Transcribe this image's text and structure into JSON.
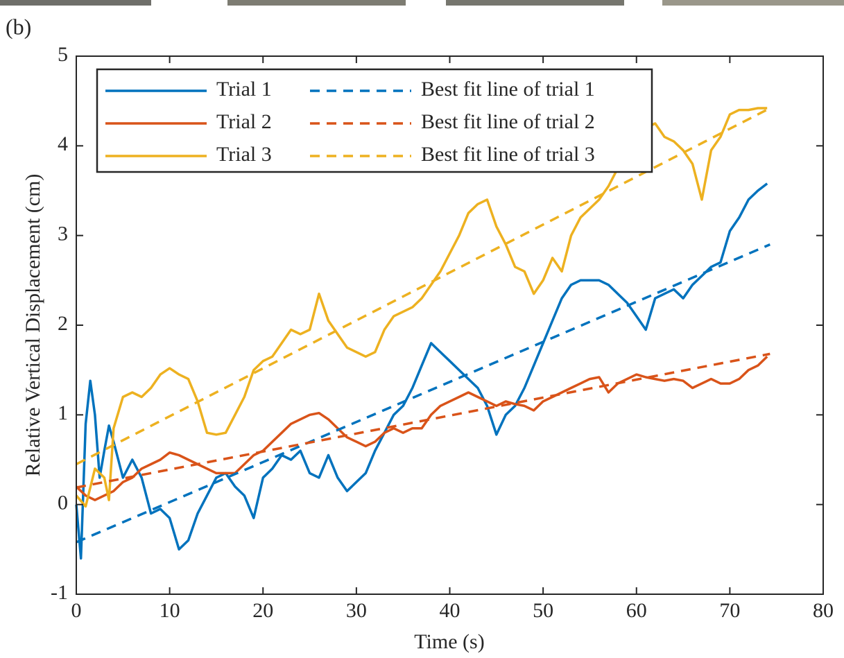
{
  "chart_data": {
    "type": "line",
    "panel_label": "(b)",
    "xlabel": "Time (s)",
    "ylabel": "Relative Vertical Displacement (cm)",
    "xlim": [
      0,
      80
    ],
    "xticks": [
      0,
      10,
      20,
      30,
      40,
      50,
      60,
      70,
      80
    ],
    "ylim": [
      -1,
      5
    ],
    "yticks": [
      -1,
      0,
      1,
      2,
      3,
      4,
      5
    ],
    "grid": false,
    "legend": "upper left",
    "series": [
      {
        "name": "Trial 1",
        "color": "#0072BD",
        "dashed": false,
        "x": [
          0,
          0.5,
          1,
          1.5,
          2,
          2.5,
          3,
          3.5,
          4,
          5,
          6,
          7,
          8,
          9,
          10,
          11,
          12,
          13,
          14,
          15,
          16,
          17,
          18,
          19,
          20,
          21,
          22,
          23,
          24,
          25,
          26,
          27,
          28,
          29,
          30,
          31,
          32,
          33,
          34,
          35,
          36,
          37,
          38,
          39,
          40,
          41,
          42,
          43,
          44,
          45,
          46,
          47,
          48,
          49,
          50,
          51,
          52,
          53,
          54,
          55,
          56,
          57,
          58,
          59,
          60,
          61,
          62,
          63,
          64,
          65,
          66,
          67,
          68,
          69,
          70,
          71,
          72,
          73,
          74
        ],
        "values": [
          0.0,
          -0.6,
          0.9,
          1.38,
          1.0,
          0.3,
          0.6,
          0.88,
          0.7,
          0.3,
          0.5,
          0.3,
          -0.1,
          -0.05,
          -0.15,
          -0.5,
          -0.4,
          -0.1,
          0.1,
          0.3,
          0.35,
          0.2,
          0.1,
          -0.15,
          0.3,
          0.4,
          0.55,
          0.5,
          0.6,
          0.35,
          0.3,
          0.55,
          0.3,
          0.15,
          0.25,
          0.35,
          0.6,
          0.8,
          1.0,
          1.1,
          1.3,
          1.55,
          1.8,
          1.7,
          1.6,
          1.5,
          1.4,
          1.3,
          1.1,
          0.78,
          1.0,
          1.1,
          1.3,
          1.55,
          1.8,
          2.05,
          2.3,
          2.45,
          2.5,
          2.5,
          2.5,
          2.45,
          2.35,
          2.25,
          2.1,
          1.95,
          2.3,
          2.35,
          2.4,
          2.3,
          2.45,
          2.55,
          2.65,
          2.7,
          3.05,
          3.2,
          3.4,
          3.5,
          3.58
        ]
      },
      {
        "name": "Trial 2",
        "color": "#D95319",
        "dashed": false,
        "x": [
          0,
          1,
          2,
          3,
          4,
          5,
          6,
          7,
          8,
          9,
          10,
          11,
          12,
          13,
          14,
          15,
          16,
          17,
          18,
          19,
          20,
          21,
          22,
          23,
          24,
          25,
          26,
          27,
          28,
          29,
          30,
          31,
          32,
          33,
          34,
          35,
          36,
          37,
          38,
          39,
          40,
          41,
          42,
          43,
          44,
          45,
          46,
          47,
          48,
          49,
          50,
          51,
          52,
          53,
          54,
          55,
          56,
          57,
          58,
          59,
          60,
          61,
          62,
          63,
          64,
          65,
          66,
          67,
          68,
          69,
          70,
          71,
          72,
          73,
          74
        ],
        "values": [
          0.2,
          0.1,
          0.05,
          0.1,
          0.15,
          0.25,
          0.3,
          0.4,
          0.45,
          0.5,
          0.58,
          0.55,
          0.5,
          0.45,
          0.4,
          0.35,
          0.35,
          0.35,
          0.45,
          0.55,
          0.6,
          0.7,
          0.8,
          0.9,
          0.95,
          1.0,
          1.02,
          0.95,
          0.85,
          0.75,
          0.7,
          0.65,
          0.7,
          0.8,
          0.85,
          0.8,
          0.85,
          0.85,
          1.0,
          1.1,
          1.15,
          1.2,
          1.25,
          1.2,
          1.15,
          1.1,
          1.15,
          1.12,
          1.1,
          1.05,
          1.15,
          1.2,
          1.25,
          1.3,
          1.35,
          1.4,
          1.42,
          1.25,
          1.35,
          1.4,
          1.45,
          1.42,
          1.4,
          1.38,
          1.4,
          1.38,
          1.3,
          1.35,
          1.4,
          1.35,
          1.35,
          1.4,
          1.5,
          1.55,
          1.65
        ]
      },
      {
        "name": "Trial 3",
        "color": "#EDB120",
        "dashed": false,
        "x": [
          0,
          1,
          2,
          3,
          3.5,
          4,
          5,
          6,
          7,
          8,
          9,
          10,
          11,
          12,
          13,
          14,
          15,
          16,
          17,
          18,
          19,
          20,
          21,
          22,
          23,
          24,
          25,
          26,
          27,
          28,
          29,
          30,
          31,
          32,
          33,
          34,
          35,
          36,
          37,
          38,
          39,
          40,
          41,
          42,
          43,
          44,
          45,
          46,
          47,
          48,
          49,
          50,
          51,
          52,
          53,
          54,
          55,
          56,
          57,
          58,
          59,
          60,
          61,
          62,
          63,
          64,
          65,
          66,
          67,
          68,
          69,
          70,
          71,
          72,
          73,
          74
        ],
        "values": [
          0.1,
          -0.02,
          0.4,
          0.3,
          0.05,
          0.85,
          1.2,
          1.25,
          1.2,
          1.3,
          1.45,
          1.52,
          1.45,
          1.4,
          1.15,
          0.8,
          0.78,
          0.8,
          1.0,
          1.2,
          1.5,
          1.6,
          1.65,
          1.8,
          1.95,
          1.9,
          1.95,
          2.35,
          2.05,
          1.9,
          1.75,
          1.7,
          1.65,
          1.7,
          1.95,
          2.1,
          2.15,
          2.2,
          2.3,
          2.45,
          2.6,
          2.8,
          3.0,
          3.25,
          3.35,
          3.4,
          3.1,
          2.9,
          2.65,
          2.6,
          2.35,
          2.5,
          2.75,
          2.6,
          3.0,
          3.2,
          3.3,
          3.4,
          3.55,
          3.75,
          4.0,
          4.15,
          4.2,
          4.25,
          4.1,
          4.05,
          3.95,
          3.8,
          3.4,
          3.95,
          4.1,
          4.35,
          4.4,
          4.4,
          4.42,
          4.42
        ]
      },
      {
        "name": "Best fit line of trial 1",
        "color": "#0072BD",
        "dashed": true,
        "x": [
          0,
          74.3
        ],
        "values": [
          -0.42,
          2.9
        ]
      },
      {
        "name": "Best fit line of trial 2",
        "color": "#D95319",
        "dashed": true,
        "x": [
          0,
          74.3
        ],
        "values": [
          0.19,
          1.68
        ]
      },
      {
        "name": "Best fit line of trial 3",
        "color": "#EDB120",
        "dashed": true,
        "x": [
          0,
          74.3
        ],
        "values": [
          0.45,
          4.42
        ]
      }
    ]
  }
}
